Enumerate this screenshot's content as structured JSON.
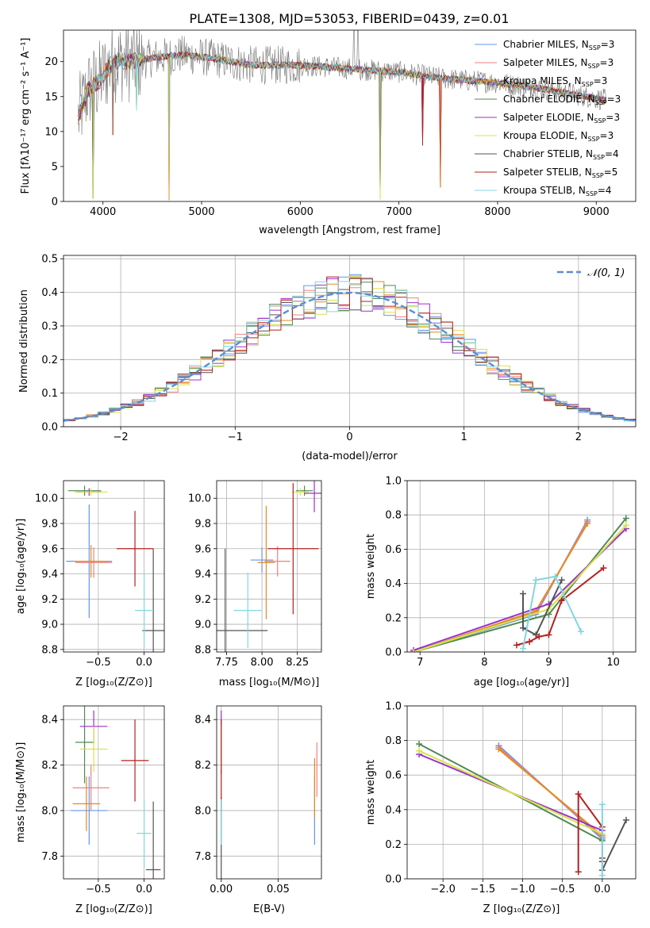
{
  "page_title": "PLATE=1308, MJD=53053, FIBERID=0439, z=0.01",
  "models": [
    {
      "label": "Chabrier MILES, N",
      "sub": "SSP",
      "tail": "=3",
      "color": "#6495ed"
    },
    {
      "label": "Salpeter MILES, N",
      "sub": "SSP",
      "tail": "=3",
      "color": "#f08080"
    },
    {
      "label": "Kroupa MILES, N",
      "sub": "SSP",
      "tail": "=3",
      "color": "#e58a1f"
    },
    {
      "label": "Chabrier ELODIE, N",
      "sub": "SSP",
      "tail": "=3",
      "color": "#4f8a54"
    },
    {
      "label": "Salpeter ELODIE, N",
      "sub": "SSP",
      "tail": "=3",
      "color": "#9932cc"
    },
    {
      "label": "Kroupa ELODIE, N",
      "sub": "SSP",
      "tail": "=3",
      "color": "#d9e34a"
    },
    {
      "label": "Chabrier STELIB, N",
      "sub": "SSP",
      "tail": "=4",
      "color": "#555555"
    },
    {
      "label": "Salpeter STELIB, N",
      "sub": "SSP",
      "tail": "=5",
      "color": "#b22222"
    },
    {
      "label": "Kroupa STELIB, N",
      "sub": "SSP",
      "tail": "=4",
      "color": "#7fd8e0"
    }
  ],
  "chart_data": [
    {
      "type": "line",
      "id": "spectrum",
      "xlabel": "wavelength [Angstrom, rest frame]",
      "ylabel": "Flux [fλ10⁻¹⁷ erg cm⁻² s⁻¹ A⁻¹]",
      "xlim": [
        3600,
        9400
      ],
      "ylim": [
        0,
        24.5
      ],
      "xticks": [
        4000,
        5000,
        6000,
        7000,
        8000,
        9000
      ],
      "yticks": [
        0,
        5,
        10,
        15,
        20
      ],
      "continuum": [
        [
          3750,
          12
        ],
        [
          3850,
          16
        ],
        [
          3950,
          17
        ],
        [
          4100,
          20
        ],
        [
          4300,
          20
        ],
        [
          4500,
          20.5
        ],
        [
          4800,
          21
        ],
        [
          5100,
          20.5
        ],
        [
          5500,
          19.5
        ],
        [
          6000,
          19.5
        ],
        [
          6500,
          19
        ],
        [
          7000,
          18.5
        ],
        [
          7500,
          17.5
        ],
        [
          8000,
          17
        ],
        [
          8500,
          16
        ],
        [
          9100,
          14.5
        ]
      ],
      "absorption_lines": [
        [
          3900,
          0.4
        ],
        [
          4100,
          9.5
        ],
        [
          4340,
          13
        ],
        [
          4670,
          0.2
        ],
        [
          6810,
          0.3
        ],
        [
          7240,
          8
        ],
        [
          7420,
          2
        ]
      ]
    },
    {
      "type": "bar",
      "id": "residual-histogram",
      "xlabel": "(data-model)/error",
      "ylabel": "Normed distribution",
      "xlim": [
        -2.5,
        2.5
      ],
      "ylim": [
        0,
        0.51
      ],
      "xticks": [
        -2,
        -1,
        0,
        1,
        2
      ],
      "yticks": [
        0.0,
        0.1,
        0.2,
        0.3,
        0.4,
        0.5
      ],
      "bin_width": 0.1,
      "reference_curve": {
        "name": "𝒩(0, 1)",
        "color": "#5b8ed6"
      }
    },
    {
      "type": "scatter",
      "id": "age-vs-Z",
      "xlabel": "Z [log₁₀(Z/Z⊙)]",
      "ylabel": "age  [log₁₀(age/yr)]",
      "xlim": [
        -0.88,
        0.22
      ],
      "ylim": [
        8.78,
        10.14
      ],
      "xticks": [
        -0.5,
        0.0
      ],
      "yticks": [
        8.8,
        9.0,
        9.2,
        9.4,
        9.6,
        9.8,
        10.0
      ],
      "points": [
        {
          "x": -0.6,
          "y": 9.5,
          "xerr": 0.25,
          "yerr": 0.45
        },
        {
          "x": -0.55,
          "y": 9.49,
          "xerr": 0.2,
          "yerr": 0.12
        },
        {
          "x": -0.58,
          "y": 9.5,
          "xerr": 0.18,
          "yerr": 0.13
        },
        {
          "x": -0.65,
          "y": 10.06,
          "xerr": 0.18,
          "yerr": 0.04
        },
        {
          "x": -0.6,
          "y": 10.05,
          "xerr": 0.14,
          "yerr": 0.03
        },
        {
          "x": -0.58,
          "y": 10.05,
          "xerr": 0.18,
          "yerr": 0.03
        },
        {
          "x": 0.1,
          "y": 8.95,
          "xerr": 0.12,
          "yerr": 0.65
        },
        {
          "x": -0.1,
          "y": 9.6,
          "xerr": 0.2,
          "yerr": 0.3
        },
        {
          "x": 0.0,
          "y": 9.11,
          "xerr": 0.1,
          "yerr": 0.3
        }
      ]
    },
    {
      "type": "scatter",
      "id": "age-vs-mass",
      "xlabel": "mass [log₁₀(M/M⊙)]",
      "ylabel": "",
      "xlim": [
        7.68,
        8.42
      ],
      "ylim": [
        8.78,
        10.14
      ],
      "xticks": [
        7.75,
        8.0,
        8.25
      ],
      "yticks": [
        8.8,
        9.0,
        9.2,
        9.4,
        9.6,
        9.8,
        10.0
      ],
      "points": [
        {
          "x": 8.0,
          "y": 9.51,
          "xerr": 0.08,
          "yerr": 0.1
        },
        {
          "x": 8.11,
          "y": 9.5,
          "xerr": 0.09,
          "yerr": 0.12
        },
        {
          "x": 8.03,
          "y": 9.49,
          "xerr": 0.06,
          "yerr": 0.45
        },
        {
          "x": 8.3,
          "y": 10.06,
          "xerr": 0.06,
          "yerr": 0.04
        },
        {
          "x": 8.37,
          "y": 10.04,
          "xerr": 0.07,
          "yerr": 0.15
        },
        {
          "x": 8.27,
          "y": 10.05,
          "xerr": 0.06,
          "yerr": 0.03
        },
        {
          "x": 7.74,
          "y": 8.95,
          "xerr": 0.3,
          "yerr": 0.65
        },
        {
          "x": 8.22,
          "y": 9.6,
          "xerr": 0.18,
          "yerr": 0.52
        },
        {
          "x": 7.9,
          "y": 9.11,
          "xerr": 0.1,
          "yerr": 0.3
        }
      ]
    },
    {
      "type": "line",
      "id": "mass-weight-vs-age",
      "xlabel": "age  [log₁₀(age/yr)]",
      "ylabel": "mass weight",
      "xlim": [
        6.8,
        10.35
      ],
      "ylim": [
        0,
        1.0
      ],
      "xticks": [
        7,
        8,
        9,
        10
      ],
      "yticks": [
        0.0,
        0.2,
        0.4,
        0.6,
        0.8,
        1.0
      ],
      "series": [
        {
          "x": [
            6.9,
            8.8,
            9.6
          ],
          "y": [
            0.0,
            0.22,
            0.77
          ]
        },
        {
          "x": [
            6.9,
            8.8,
            9.6
          ],
          "y": [
            0.0,
            0.23,
            0.76
          ]
        },
        {
          "x": [
            6.9,
            8.8,
            9.6
          ],
          "y": [
            0.0,
            0.24,
            0.75
          ]
        },
        {
          "x": [
            6.9,
            9.0,
            10.2
          ],
          "y": [
            0.0,
            0.22,
            0.78
          ]
        },
        {
          "x": [
            6.9,
            9.0,
            10.2
          ],
          "y": [
            0.01,
            0.28,
            0.72
          ]
        },
        {
          "x": [
            6.9,
            9.0,
            10.2
          ],
          "y": [
            0.0,
            0.25,
            0.74
          ]
        },
        {
          "x": [
            8.6,
            8.6,
            8.8,
            9.2
          ],
          "y": [
            0.34,
            0.14,
            0.1,
            0.42
          ]
        },
        {
          "x": [
            8.5,
            8.7,
            8.85,
            9.0,
            9.2,
            9.85
          ],
          "y": [
            0.04,
            0.06,
            0.09,
            0.1,
            0.3,
            0.49
          ]
        },
        {
          "x": [
            8.6,
            8.8,
            9.1,
            9.5
          ],
          "y": [
            0.02,
            0.42,
            0.44,
            0.12
          ]
        }
      ]
    },
    {
      "type": "scatter",
      "id": "mass-vs-Z",
      "xlabel": "Z [log₁₀(Z/Z⊙)]",
      "ylabel": "mass [log₁₀(M/M⊙)]",
      "xlim": [
        -0.88,
        0.22
      ],
      "ylim": [
        7.7,
        8.46
      ],
      "xticks": [
        -0.5,
        0.0
      ],
      "yticks": [
        7.8,
        8.0,
        8.2,
        8.4
      ],
      "points": [
        {
          "x": -0.6,
          "y": 8.0,
          "xerr": 0.2,
          "yerr": 0.15
        },
        {
          "x": -0.58,
          "y": 8.1,
          "xerr": 0.2,
          "yerr": 0.1
        },
        {
          "x": -0.63,
          "y": 8.03,
          "xerr": 0.15,
          "yerr": 0.12
        },
        {
          "x": -0.65,
          "y": 8.3,
          "xerr": 0.1,
          "yerr": 0.18
        },
        {
          "x": -0.55,
          "y": 8.37,
          "xerr": 0.15,
          "yerr": 0.07
        },
        {
          "x": -0.55,
          "y": 8.27,
          "xerr": 0.15,
          "yerr": 0.1
        },
        {
          "x": 0.1,
          "y": 7.74,
          "xerr": 0.08,
          "yerr": 0.3
        },
        {
          "x": -0.1,
          "y": 8.22,
          "xerr": 0.15,
          "yerr": 0.18
        },
        {
          "x": 0.0,
          "y": 7.9,
          "xerr": 0.08,
          "yerr": 0.15
        }
      ]
    },
    {
      "type": "scatter",
      "id": "mass-vs-ebv",
      "xlabel": "E(B-V)",
      "ylabel": "",
      "xlim": [
        -0.004,
        0.088
      ],
      "ylim": [
        7.7,
        8.46
      ],
      "xticks": [
        0.0,
        0.05
      ],
      "yticks": [
        7.8,
        8.0,
        8.2,
        8.4
      ],
      "points": [
        {
          "x": 0.082,
          "y": 8.0,
          "xerr": 0,
          "yerr": 0.15
        },
        {
          "x": 0.084,
          "y": 8.18,
          "xerr": 0,
          "yerr": 0.12
        },
        {
          "x": 0.082,
          "y": 8.1,
          "xerr": 0,
          "yerr": 0.13
        },
        {
          "x": 0.0,
          "y": 8.3,
          "xerr": 0,
          "yerr": 0.1
        },
        {
          "x": 0.0,
          "y": 8.3,
          "xerr": 0,
          "yerr": 0.14
        },
        {
          "x": 0.0,
          "y": 8.28,
          "xerr": 0,
          "yerr": 0.1
        },
        {
          "x": 0.0,
          "y": 7.88,
          "xerr": 0,
          "yerr": 0.18
        },
        {
          "x": 0.0,
          "y": 8.2,
          "xerr": 0,
          "yerr": 0.2
        },
        {
          "x": 0.0,
          "y": 7.95,
          "xerr": 0,
          "yerr": 0.1
        }
      ]
    },
    {
      "type": "line",
      "id": "mass-weight-vs-Z",
      "xlabel": "Z [log₁₀(Z/Z⊙)]",
      "ylabel": "mass weight",
      "xlim": [
        -2.45,
        0.42
      ],
      "ylim": [
        0,
        1.0
      ],
      "xticks": [
        -2.0,
        -1.5,
        -1.0,
        -0.5,
        0.0
      ],
      "yticks": [
        0.0,
        0.2,
        0.4,
        0.6,
        0.8,
        1.0
      ],
      "series": [
        {
          "x": [
            -1.3,
            0.0
          ],
          "y": [
            0.77,
            0.23
          ]
        },
        {
          "x": [
            -1.3,
            0.0
          ],
          "y": [
            0.76,
            0.24
          ]
        },
        {
          "x": [
            -1.3,
            0.0
          ],
          "y": [
            0.75,
            0.25
          ]
        },
        {
          "x": [
            -2.3,
            0.0
          ],
          "y": [
            0.78,
            0.22
          ]
        },
        {
          "x": [
            -2.3,
            0.0
          ],
          "y": [
            0.72,
            0.28
          ]
        },
        {
          "x": [
            -2.3,
            0.0
          ],
          "y": [
            0.74,
            0.26
          ]
        },
        {
          "x": [
            0.0,
            0.0,
            0.3
          ],
          "y": [
            0.12,
            0.05,
            0.34
          ]
        },
        {
          "x": [
            -0.3,
            -0.3,
            0.0,
            0.0
          ],
          "y": [
            0.04,
            0.49,
            0.3,
            0.1
          ]
        },
        {
          "x": [
            0.0,
            0.0
          ],
          "y": [
            0.02,
            0.43
          ]
        }
      ]
    }
  ]
}
